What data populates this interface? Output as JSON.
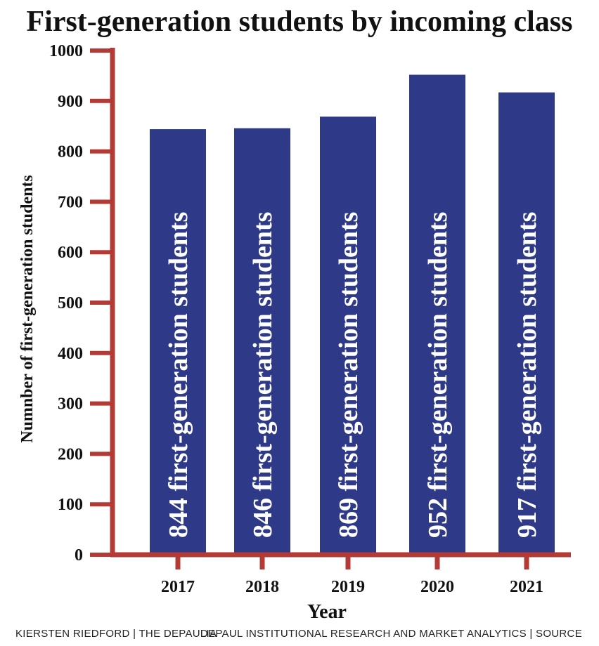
{
  "colors": {
    "bar": "#2e3a87",
    "axis": "#b33a35",
    "text": "#111111"
  },
  "footer": {
    "credit_left": "KIERSTEN RIEDFORD | THE DEPAULIA",
    "credit_right": "DEPAUL INSTITUTIONAL RESEARCH AND MARKET ANALYTICS | SOURCE"
  },
  "chart_data": {
    "type": "bar",
    "title": "First-generation students by incoming class",
    "xlabel": "Year",
    "ylabel": "Numnber of first-generation students",
    "categories": [
      "2017",
      "2018",
      "2019",
      "2020",
      "2021"
    ],
    "values": [
      844,
      846,
      869,
      952,
      917
    ],
    "data_labels": [
      "844 first-generation students",
      "846 first-generation students",
      "869 first-generation students",
      "952 first-generation students",
      "917 first-generation students"
    ],
    "ylim": [
      0,
      1000
    ],
    "yticks": [
      0,
      100,
      200,
      300,
      400,
      500,
      600,
      700,
      800,
      900,
      1000
    ],
    "grid": false,
    "legend": "none"
  }
}
